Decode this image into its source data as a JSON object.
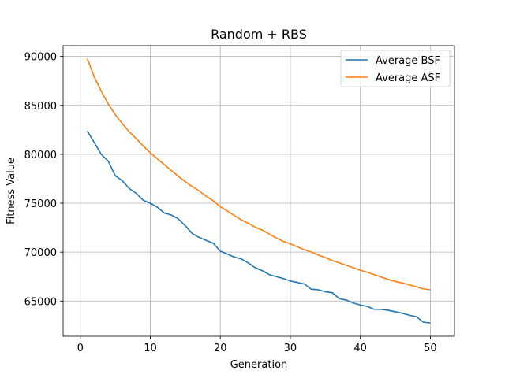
{
  "chart_data": {
    "type": "line",
    "title": "Random + RBS",
    "xlabel": "Generation",
    "ylabel": "Fitness Value",
    "xlim": [
      -2.45,
      53.45
    ],
    "ylim": [
      61400,
      91100
    ],
    "xticks": [
      0,
      10,
      20,
      30,
      40,
      50
    ],
    "yticks": [
      65000,
      70000,
      75000,
      80000,
      85000,
      90000
    ],
    "xtick_labels": [
      "0",
      "10",
      "20",
      "30",
      "40",
      "50"
    ],
    "ytick_labels": [
      "65000",
      "70000",
      "75000",
      "80000",
      "85000",
      "90000"
    ],
    "grid": true,
    "legend_position": "upper-right",
    "x": [
      1,
      2,
      3,
      4,
      5,
      6,
      7,
      8,
      9,
      10,
      11,
      12,
      13,
      14,
      15,
      16,
      17,
      18,
      19,
      20,
      21,
      22,
      23,
      24,
      25,
      26,
      27,
      28,
      29,
      30,
      31,
      32,
      33,
      34,
      35,
      36,
      37,
      38,
      39,
      40,
      41,
      42,
      43,
      44,
      45,
      46,
      47,
      48,
      49,
      50
    ],
    "series": [
      {
        "name": "Average BSF",
        "color": "#1f77b4",
        "values": [
          82400,
          81200,
          80000,
          79300,
          77800,
          77300,
          76500,
          76000,
          75300,
          75000,
          74600,
          74000,
          73800,
          73400,
          72700,
          71900,
          71500,
          71200,
          70900,
          70100,
          69800,
          69500,
          69300,
          68900,
          68400,
          68100,
          67700,
          67500,
          67300,
          67050,
          66900,
          66750,
          66200,
          66150,
          65950,
          65850,
          65250,
          65100,
          64800,
          64600,
          64450,
          64150,
          64150,
          64050,
          63900,
          63750,
          63550,
          63400,
          62850,
          62750
        ]
      },
      {
        "name": "Average ASF",
        "color": "#ff7f0e",
        "values": [
          89800,
          87900,
          86450,
          85150,
          84050,
          83150,
          82300,
          81600,
          80850,
          80150,
          79550,
          78950,
          78350,
          77750,
          77200,
          76700,
          76250,
          75700,
          75250,
          74650,
          74200,
          73750,
          73300,
          72950,
          72550,
          72250,
          71850,
          71450,
          71100,
          70850,
          70550,
          70250,
          70000,
          69700,
          69450,
          69150,
          68900,
          68650,
          68400,
          68150,
          67950,
          67700,
          67450,
          67200,
          67000,
          66850,
          66650,
          66450,
          66250,
          66150
        ]
      }
    ]
  }
}
